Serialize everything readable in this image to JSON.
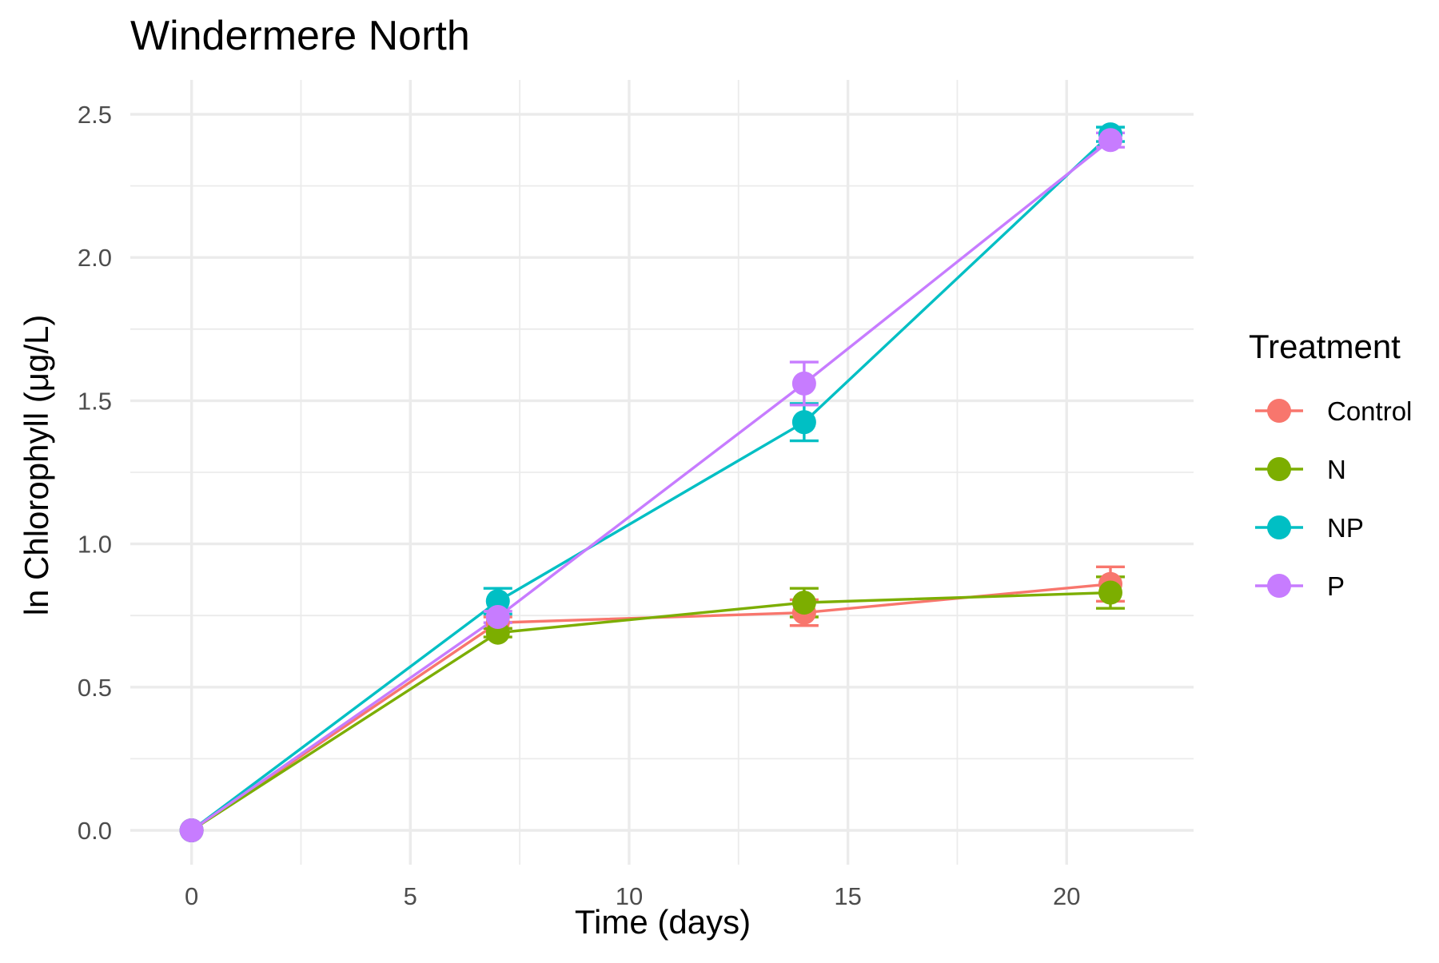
{
  "chart_data": {
    "type": "line",
    "title": "Windermere North",
    "xlabel": "Time (days)",
    "ylabel": "ln Chlorophyll (μg/L)",
    "xlim": [
      -1.4,
      22.9
    ],
    "ylim": [
      -0.12,
      2.62
    ],
    "x_ticks": [
      0,
      5,
      10,
      15,
      20
    ],
    "x_tick_labels": [
      "0",
      "5",
      "10",
      "15",
      "20"
    ],
    "y_ticks": [
      0.0,
      0.5,
      1.0,
      1.5,
      2.0,
      2.5
    ],
    "y_tick_labels": [
      "0.0",
      "0.5",
      "1.0",
      "1.5",
      "2.0",
      "2.5"
    ],
    "grid": true,
    "legend": {
      "title": "Treatment",
      "position": "right"
    },
    "x": [
      0,
      7,
      14,
      21
    ],
    "series": [
      {
        "name": "Control",
        "color": "#F8766D",
        "values": [
          0,
          0.725,
          0.76,
          0.86
        ],
        "errors": [
          0,
          0.02,
          0.045,
          0.06
        ]
      },
      {
        "name": "N",
        "color": "#7CAE00",
        "values": [
          0,
          0.69,
          0.795,
          0.83
        ],
        "errors": [
          0,
          0.015,
          0.05,
          0.055
        ]
      },
      {
        "name": "NP",
        "color": "#00BFC4",
        "values": [
          0,
          0.8,
          1.425,
          2.43
        ],
        "errors": [
          0,
          0.045,
          0.065,
          0.025
        ]
      },
      {
        "name": "P",
        "color": "#C77CFF",
        "values": [
          0,
          0.745,
          1.56,
          2.41
        ],
        "errors": [
          0,
          0.02,
          0.075,
          0.025
        ]
      }
    ]
  }
}
